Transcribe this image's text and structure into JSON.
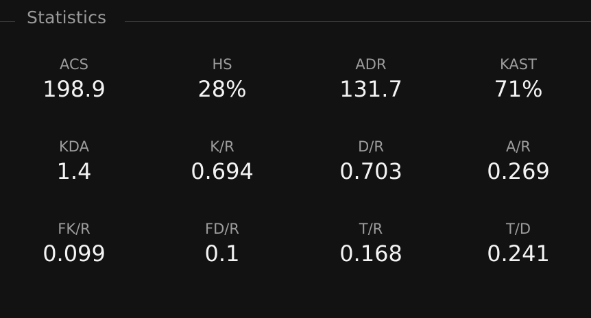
{
  "section": {
    "title": "Statistics"
  },
  "stats": [
    {
      "label": "ACS",
      "value": "198.9"
    },
    {
      "label": "HS",
      "value": "28%"
    },
    {
      "label": "ADR",
      "value": "131.7"
    },
    {
      "label": "KAST",
      "value": "71%"
    },
    {
      "label": "KDA",
      "value": "1.4"
    },
    {
      "label": "K/R",
      "value": "0.694"
    },
    {
      "label": "D/R",
      "value": "0.703"
    },
    {
      "label": "A/R",
      "value": "0.269"
    },
    {
      "label": "FK/R",
      "value": "0.099"
    },
    {
      "label": "FD/R",
      "value": "0.1"
    },
    {
      "label": "T/R",
      "value": "0.168"
    },
    {
      "label": "T/D",
      "value": "0.241"
    }
  ]
}
